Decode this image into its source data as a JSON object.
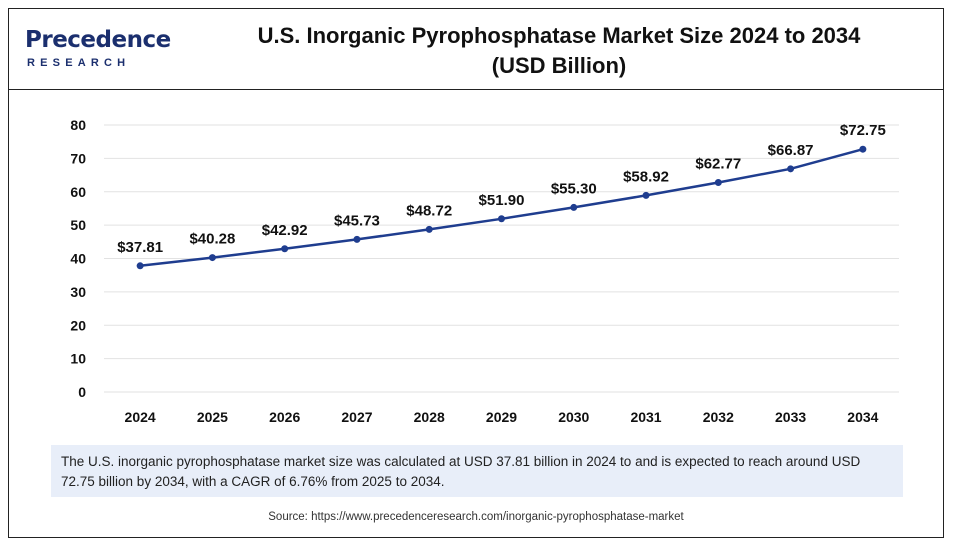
{
  "header": {
    "logo_top": "Precedence",
    "logo_bottom": "RESEARCH",
    "title_line1": "U.S. Inorganic Pyrophosphatase Market Size 2024 to 2034",
    "title_line2": "(USD Billion)"
  },
  "chart_data": {
    "type": "line",
    "x": [
      "2024",
      "2025",
      "2026",
      "2027",
      "2028",
      "2029",
      "2030",
      "2031",
      "2032",
      "2033",
      "2034"
    ],
    "series": [
      {
        "values": [
          37.81,
          40.28,
          42.92,
          45.73,
          48.72,
          51.9,
          55.3,
          58.92,
          62.77,
          66.87,
          72.75
        ],
        "labels": [
          "$37.81",
          "$40.28",
          "$42.92",
          "$45.73",
          "$48.72",
          "$51.90",
          "$55.30",
          "$58.92",
          "$62.77",
          "$66.87",
          "$72.75"
        ],
        "color": "#1f3d8f"
      }
    ],
    "yticks": [
      0,
      10,
      20,
      30,
      40,
      50,
      60,
      70,
      80
    ],
    "ylim": [
      0,
      80
    ],
    "grid": true,
    "legend": "none",
    "gridColor": "#e2e2e2",
    "labelColor": "#111111"
  },
  "note": "The U.S. inorganic pyrophosphatase market size was calculated at USD 37.81 billion in 2024 to and is expected to reach around USD 72.75 billion by 2034, with a CAGR of 6.76% from 2025 to 2034.",
  "source": "Source: https://www.precedenceresearch.com/inorganic-pyrophosphatase-market"
}
